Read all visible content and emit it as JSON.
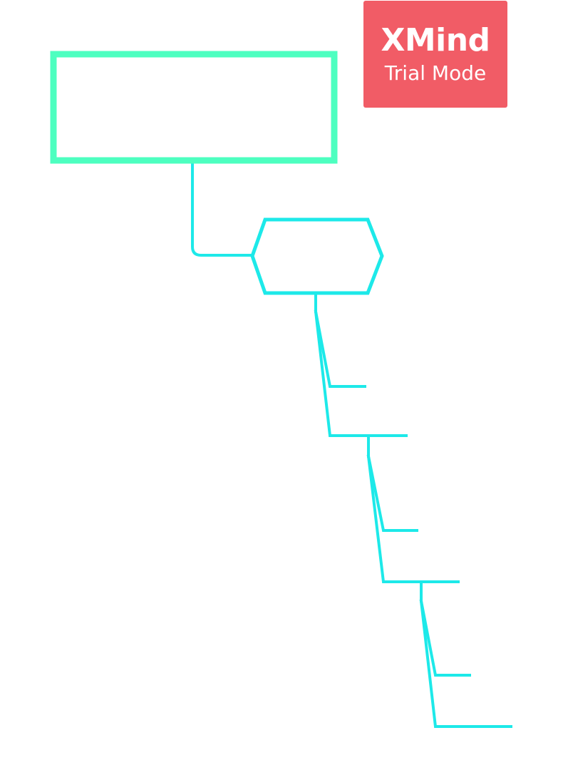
{
  "watermark": {
    "brand": "XMind",
    "mode": "Trial Mode"
  },
  "colors": {
    "root_border": "#4dffc0",
    "branch_line": "#1de9e9",
    "watermark_bg": "#f15c66",
    "watermark_text": "#ffffff"
  },
  "mindmap": {
    "root": {
      "label": ""
    },
    "main_topic": {
      "label": "",
      "shape": "hexagon"
    },
    "subtopics": [
      {
        "label": ""
      },
      {
        "label": ""
      },
      {
        "label": ""
      },
      {
        "label": ""
      },
      {
        "label": ""
      },
      {
        "label": ""
      }
    ]
  }
}
